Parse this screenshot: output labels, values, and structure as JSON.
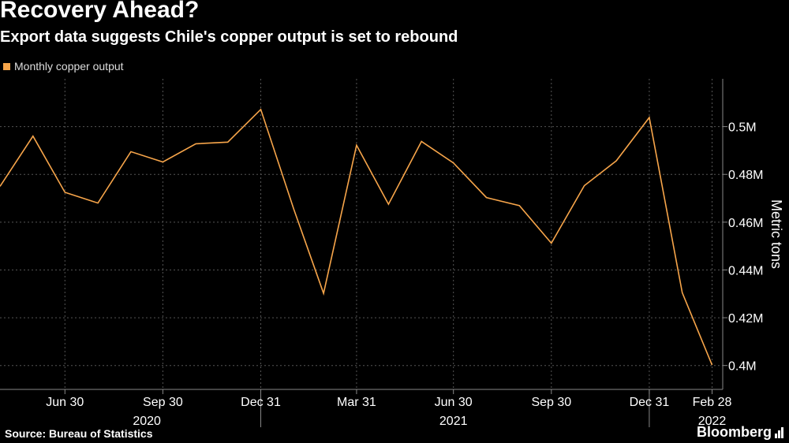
{
  "header": {
    "title": "Recovery Ahead?",
    "subtitle": "Export data suggests Chile's copper output is set to rebound"
  },
  "footer": {
    "source": "Source: Bureau of Statistics",
    "brand": "Bloomberg"
  },
  "colors": {
    "background": "#000000",
    "series": "#f7a54a",
    "grid": "#555555",
    "text": "#ffffff"
  },
  "chart_data": {
    "type": "line",
    "title": "Recovery Ahead?",
    "subtitle": "Export data suggests Chile's copper output is set to rebound",
    "ylabel": "Metric tons",
    "ylim": [
      0.39,
      0.52
    ],
    "yaxis_side": "right",
    "yticks": [
      0.4,
      0.42,
      0.44,
      0.46,
      0.48,
      0.5
    ],
    "ytick_labels": [
      "0.4M",
      "0.42M",
      "0.44M",
      "0.46M",
      "0.48M",
      "0.5M"
    ],
    "x": [
      "2020-04-30",
      "2020-05-31",
      "2020-06-30",
      "2020-07-31",
      "2020-08-31",
      "2020-09-30",
      "2020-10-31",
      "2020-11-30",
      "2020-12-31",
      "2021-01-31",
      "2021-02-28",
      "2021-03-31",
      "2021-04-30",
      "2021-05-31",
      "2021-06-30",
      "2021-07-31",
      "2021-08-31",
      "2021-09-30",
      "2021-10-31",
      "2021-11-30",
      "2021-12-31",
      "2022-01-31",
      "2022-02-28"
    ],
    "xticks": [
      "Jun 30",
      "Sep 30",
      "Dec 31",
      "Mar 31",
      "Jun 30",
      "Sep 30",
      "Dec 31",
      "Feb 28"
    ],
    "xtick_dates": [
      "2020-06-30",
      "2020-09-30",
      "2020-12-31",
      "2021-03-31",
      "2021-06-30",
      "2021-09-30",
      "2021-12-31",
      "2022-02-28"
    ],
    "year_labels": [
      "2020",
      "2021",
      "2022"
    ],
    "year_label_dates": [
      "2020-09-15",
      "2021-06-30",
      "2022-02-28"
    ],
    "year_dividers": [
      "2020-12-31",
      "2021-12-31"
    ],
    "series": [
      {
        "name": "Monthly copper output",
        "values": [
          0.475,
          0.496,
          0.4725,
          0.468,
          0.4895,
          0.4852,
          0.4928,
          0.4935,
          0.5072,
          0.4655,
          0.4302,
          0.4922,
          0.4675,
          0.4938,
          0.4848,
          0.4703,
          0.4669,
          0.4512,
          0.4753,
          0.4857,
          0.5038,
          0.4305,
          0.4002
        ]
      }
    ],
    "legend": "top-left",
    "grid": true
  }
}
